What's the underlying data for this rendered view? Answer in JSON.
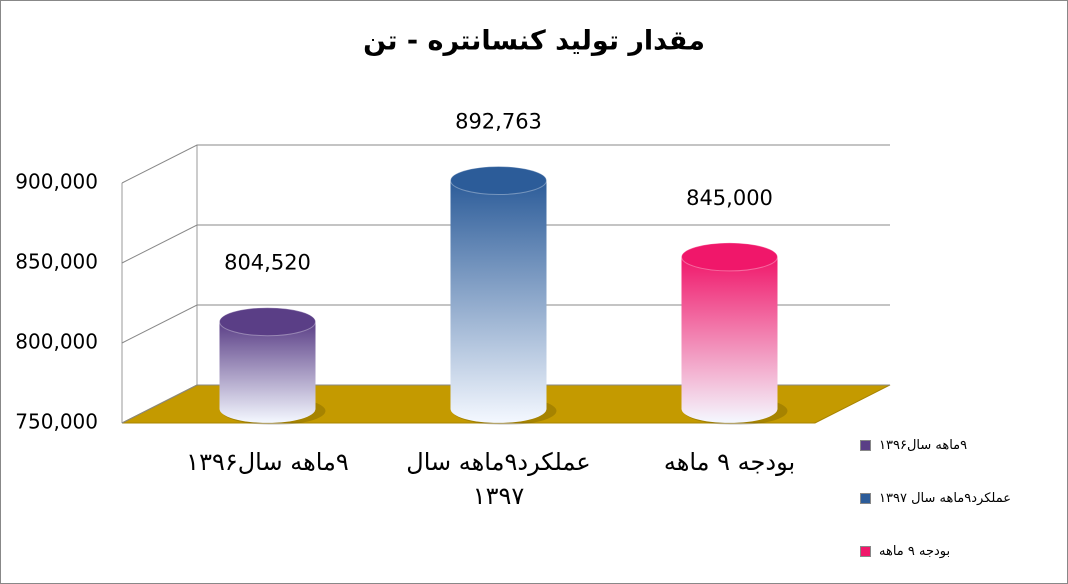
{
  "chart_data": {
    "type": "bar3d",
    "title": "مقدار تولید کنسانتره - تن",
    "categories": [
      "۹ماهه سال۱۳۹۶",
      "عملکرد۹ماهه سال ۱۳۹۷",
      "بودجه ۹ ماهه"
    ],
    "values": [
      804520,
      892763,
      845000
    ],
    "value_labels": [
      "804,520",
      "892,763",
      "845,000"
    ],
    "colors": [
      "#5a3e86",
      "#2c5c99",
      "#f0176a"
    ],
    "ylim": [
      750000,
      900000
    ],
    "yticks": [
      {
        "value": 750000,
        "label": "750,000"
      },
      {
        "value": 800000,
        "label": "800,000"
      },
      {
        "value": 850000,
        "label": "850,000"
      },
      {
        "value": 900000,
        "label": "900,000"
      }
    ],
    "grid": true,
    "legend": "right"
  }
}
